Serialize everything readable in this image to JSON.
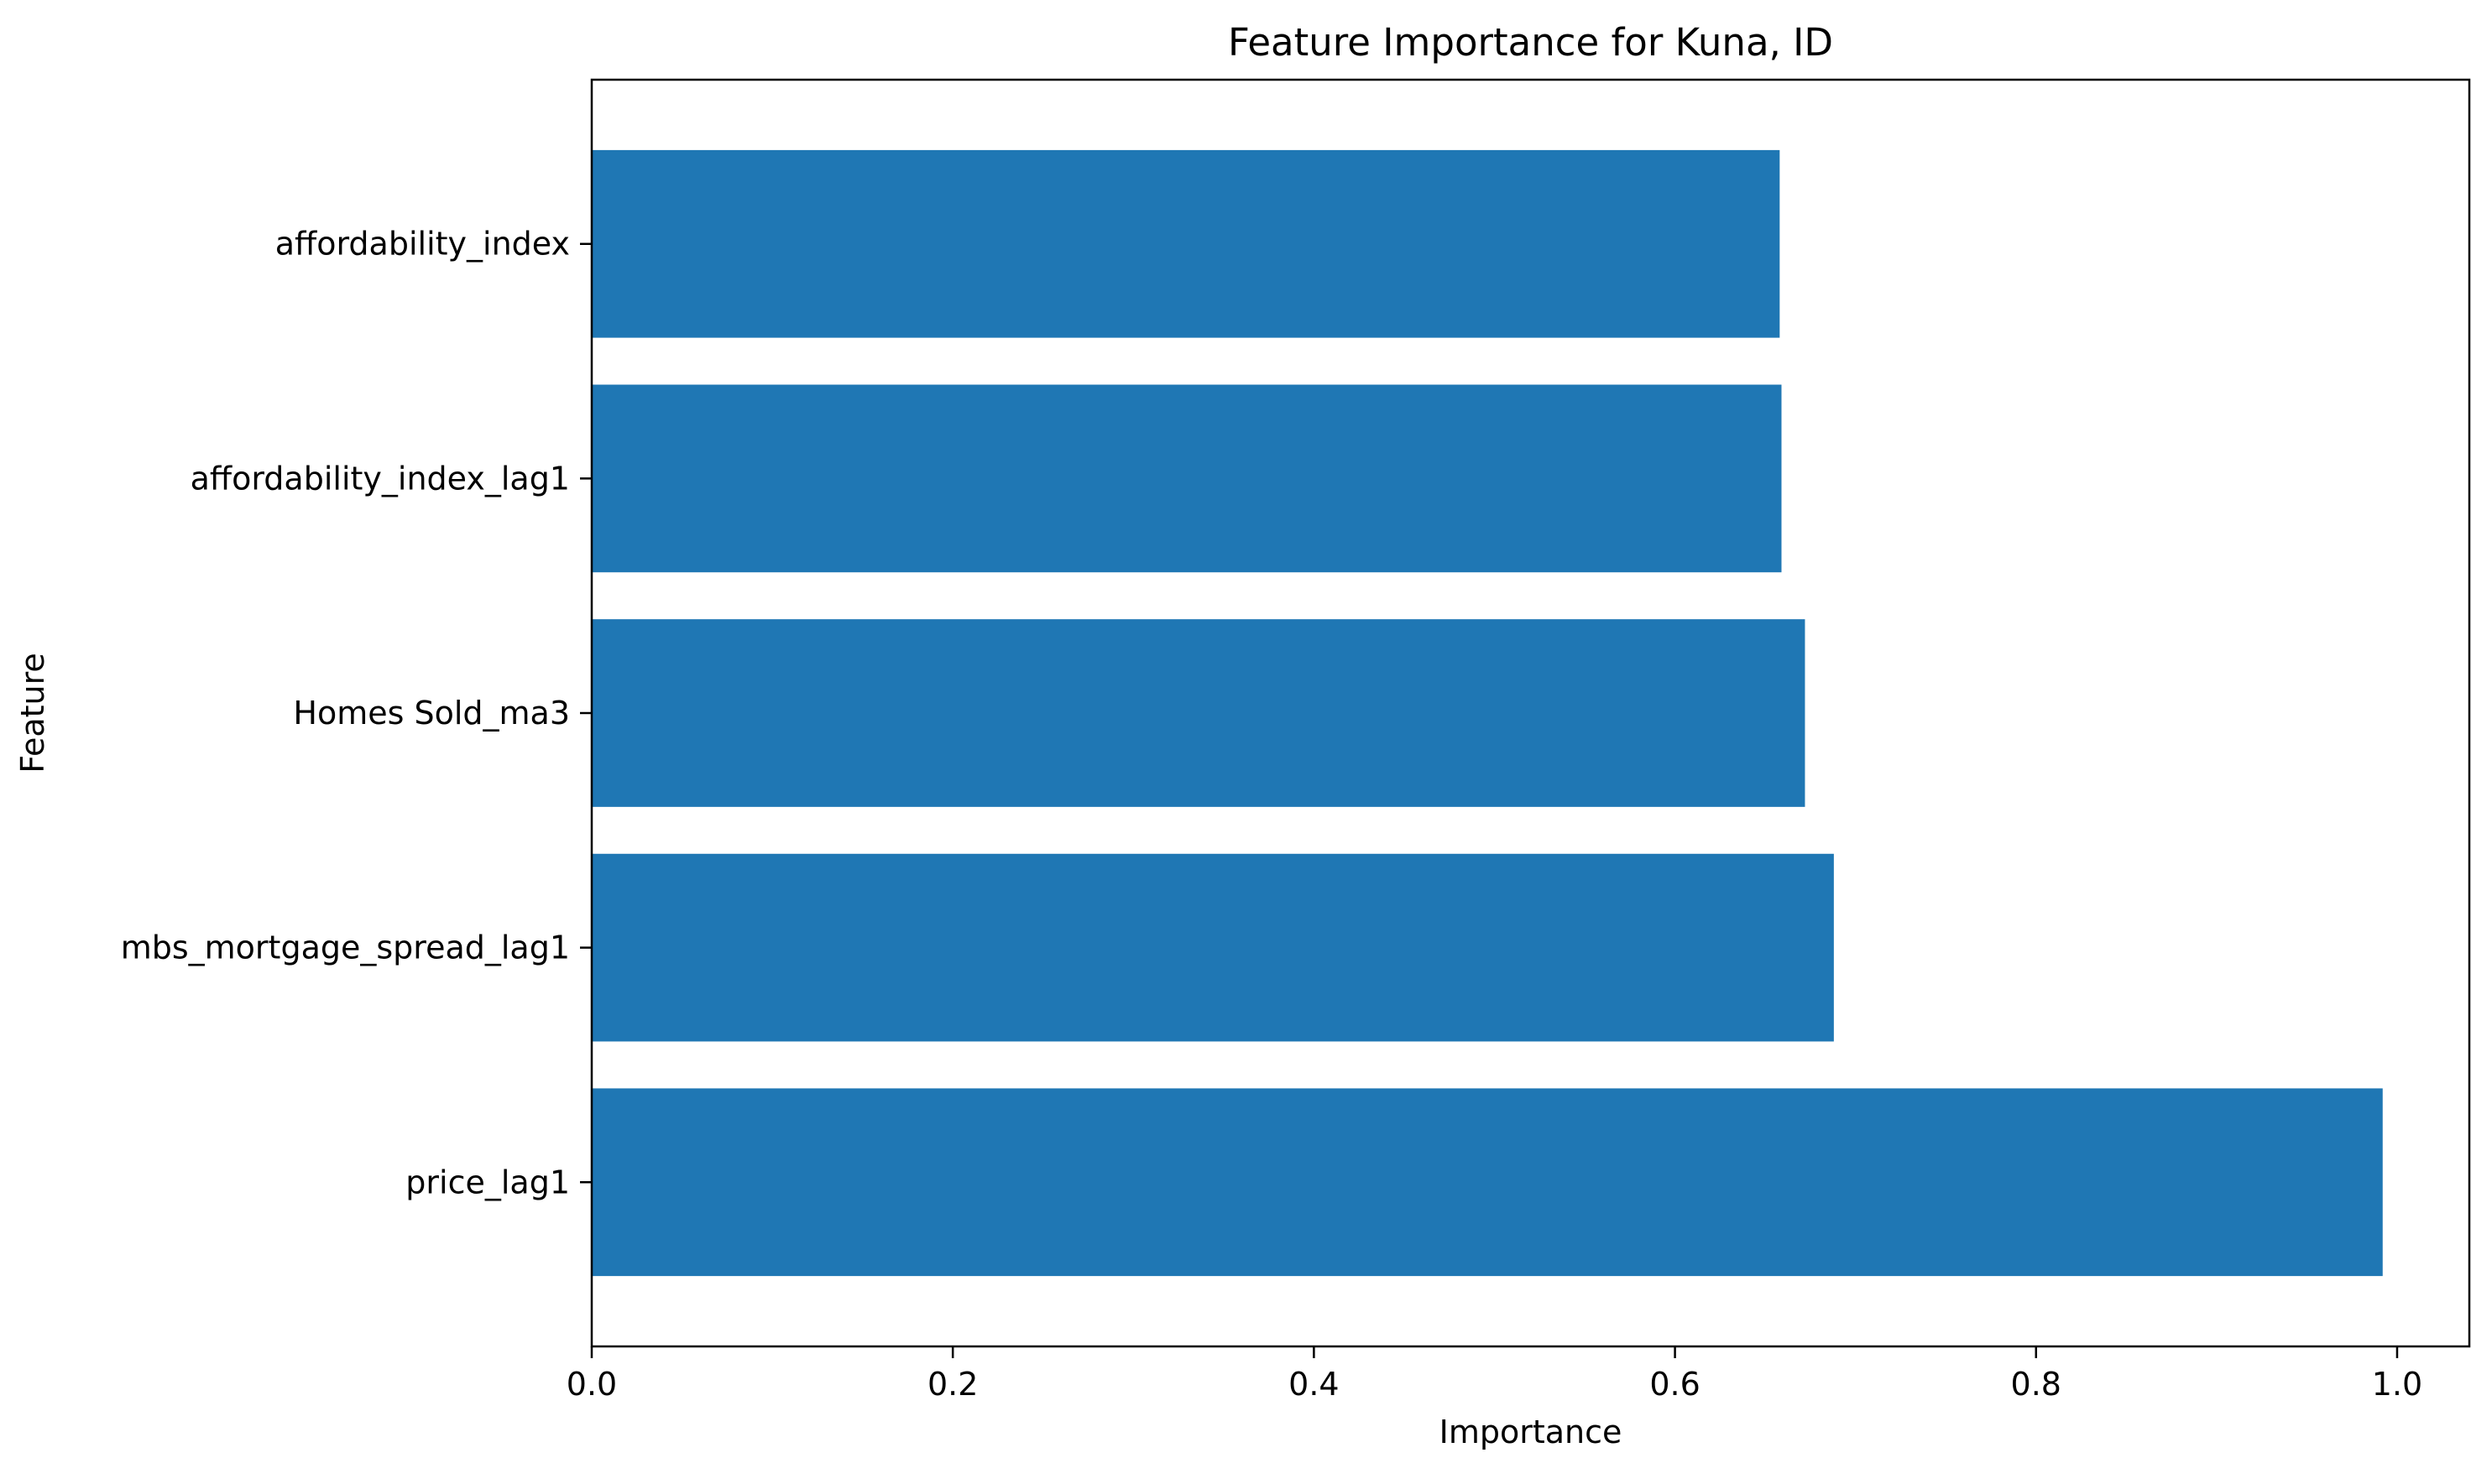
{
  "chart_data": {
    "type": "bar",
    "orientation": "horizontal",
    "title": "Feature Importance for Kuna, ID",
    "xlabel": "Importance",
    "ylabel": "Feature",
    "categories": [
      "price_lag1",
      "mbs_mortgage_spread_lag1",
      "Homes Sold_ma3",
      "affordability_index_lag1",
      "affordability_index"
    ],
    "values": [
      0.992,
      0.688,
      0.672,
      0.659,
      0.658
    ],
    "xlim": [
      0.0,
      1.04
    ],
    "xticks": [
      "0.0",
      "0.2",
      "0.4",
      "0.6",
      "0.8",
      "1.0"
    ],
    "grid": false,
    "legend": "none",
    "colors": {
      "bar": "#1f77b4",
      "axis": "#000000",
      "background": "#ffffff"
    }
  }
}
